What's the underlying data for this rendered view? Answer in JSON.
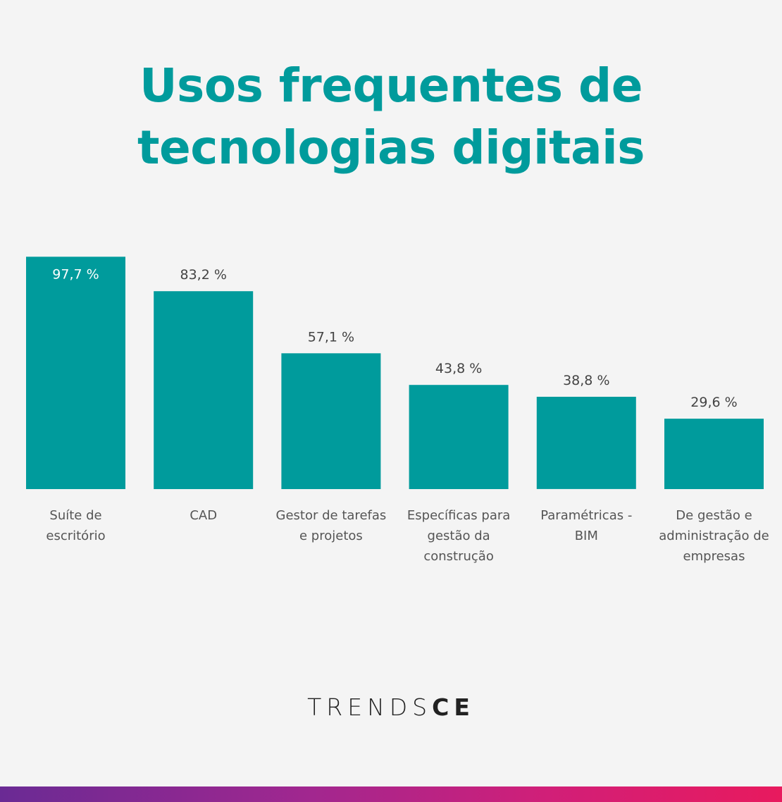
{
  "title_line1": "Usos frequentes de",
  "title_line2": "tecnologias digitais",
  "brand_light": "TRENDS",
  "brand_bold": "CE",
  "colors": {
    "bar": "#009b9c",
    "title": "#009b9c",
    "background": "#f4f4f4",
    "stripe_start": "#6a2a94",
    "stripe_end": "#e81a5e"
  },
  "chart_data": {
    "type": "bar",
    "categories": [
      [
        "Suíte de",
        "escritório"
      ],
      [
        "CAD"
      ],
      [
        "Gestor de tarefas",
        "e projetos"
      ],
      [
        "Específicas para",
        "gestão da",
        "construção"
      ],
      [
        "Paramétricas -",
        "BIM"
      ],
      [
        "De gestão e",
        "administração de",
        "empresas"
      ]
    ],
    "values": [
      97.7,
      83.2,
      57.1,
      43.8,
      38.8,
      29.6
    ],
    "value_labels": [
      "97,7 %",
      "83,2 %",
      "57,1 %",
      "43,8 %",
      "38,8 %",
      "29,6 %"
    ],
    "title": "Usos frequentes de tecnologias digitais",
    "xlabel": "",
    "ylabel": "",
    "ylim": [
      0,
      100
    ],
    "grid": false,
    "legend": "none"
  }
}
